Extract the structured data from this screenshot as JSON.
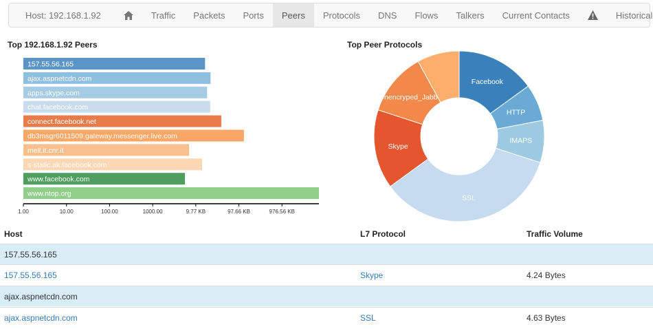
{
  "nav": {
    "host_label": "Host: 192.168.1.92",
    "home_icon": "home-icon",
    "items": [
      "Traffic",
      "Packets",
      "Ports",
      "Peers",
      "Protocols",
      "DNS",
      "Flows",
      "Talkers",
      "Current Contacts"
    ],
    "active": "Peers",
    "alert_icon": "warning-icon",
    "historical": "Historical",
    "back_icon": "undo-icon"
  },
  "peers_title": "Top 192.168.1.92 Peers",
  "protocols_title": "Top Peer Protocols",
  "chart_data": [
    {
      "type": "bar",
      "orientation": "horizontal",
      "title": "Top 192.168.1.92 Peers",
      "categories": [
        "157.55.56.165",
        "ajax.aspnetcdn.com",
        "apps.skype.com",
        "chat.facebook.com",
        "connect.facebook.net",
        "db3msgr6011509.gateway.messenger.live.com",
        "mell.it.cnr.it",
        "s-static.ak.facebook.com",
        "www.facebook.com",
        "www.ntop.org"
      ],
      "values": [
        16400,
        22000,
        18300,
        21600,
        39000,
        131000,
        7000,
        14000,
        5600,
        7200000
      ],
      "colors": [
        "#5b95c5",
        "#8fbfdf",
        "#a6cbe4",
        "#c9dcee",
        "#e77b4a",
        "#f9a767",
        "#f9bf8c",
        "#fcd7b3",
        "#4e9e5f",
        "#8fcf89"
      ],
      "xscale": "log",
      "xticks": [
        "1.00",
        "10.00",
        "100.00",
        "1000.00",
        "9.77 KB",
        "97.66 KB",
        "976.56 KB"
      ]
    },
    {
      "type": "pie",
      "style": "donut",
      "title": "Top Peer Protocols",
      "labels": [
        "Facebook",
        "HTTP",
        "IMAPS",
        "SSL",
        "Skype",
        "Unencryped_Jabber",
        ""
      ],
      "values": [
        15,
        7,
        8,
        35,
        15,
        12,
        8
      ],
      "colors": [
        "#3a80bb",
        "#6aaad5",
        "#9ecae1",
        "#c6dbef",
        "#e6562e",
        "#f2894a",
        "#fdad6c"
      ]
    }
  ],
  "table": {
    "headers": {
      "host": "Host",
      "protocol": "L7 Protocol",
      "volume": "Traffic Volume"
    },
    "rows": [
      {
        "group": "157.55.56.165"
      },
      {
        "host": "157.55.56.165",
        "protocol": "Skype",
        "volume": "4.24 Bytes"
      },
      {
        "group": "ajax.aspnetcdn.com"
      },
      {
        "host": "ajax.aspnetcdn.com",
        "protocol": "SSL",
        "volume": "4.63 Bytes"
      }
    ]
  }
}
